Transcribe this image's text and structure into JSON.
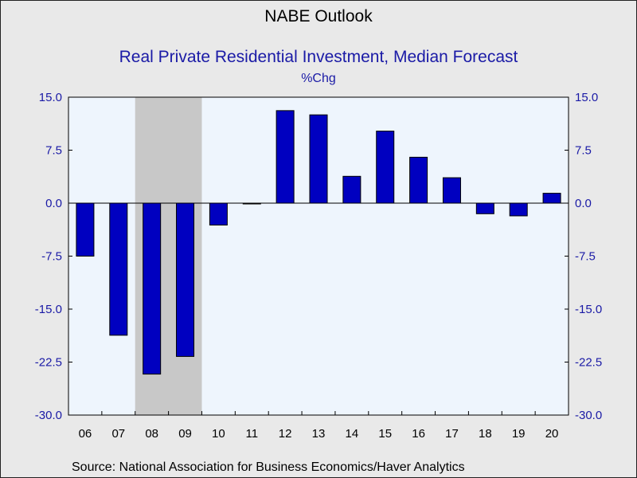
{
  "header": {
    "title": "NABE Outlook",
    "subtitle": "Real Private Residential Investment, Median Forecast",
    "unit": "%Chg"
  },
  "footer": {
    "source": "Source:  National Association for Business Economics/Haver Analytics"
  },
  "colors": {
    "bar_fill": "#0000c0",
    "bar_stroke": "#000000",
    "plot_background": "#eef5fd",
    "recession_shade": "#c8c8c8",
    "axis_label_color": "#1a1aa6",
    "page_background": "#e9e9e9"
  },
  "chart_data": {
    "type": "bar",
    "title": "NABE Outlook",
    "subtitle": "Real Private Residential Investment, Median Forecast",
    "ylabel": "%Chg",
    "xlabel": "",
    "categories": [
      "06",
      "07",
      "08",
      "09",
      "10",
      "11",
      "12",
      "13",
      "14",
      "15",
      "16",
      "17",
      "18",
      "19",
      "20"
    ],
    "values": [
      -7.5,
      -18.7,
      -24.2,
      -21.7,
      -3.1,
      -0.1,
      13.1,
      12.5,
      3.8,
      10.2,
      6.5,
      3.6,
      -1.5,
      -1.8,
      1.4
    ],
    "ylim": [
      -30.0,
      15.0
    ],
    "yticks": [
      "15.0",
      "7.5",
      "0.0",
      "-7.5",
      "-15.0",
      "-22.5",
      "-30.0"
    ],
    "ytick_values": [
      15.0,
      7.5,
      0.0,
      -7.5,
      -15.0,
      -22.5,
      -30.0
    ],
    "shaded_categories": [
      "08",
      "09"
    ],
    "grid": false,
    "legend": "none",
    "axes": "left-and-right"
  }
}
